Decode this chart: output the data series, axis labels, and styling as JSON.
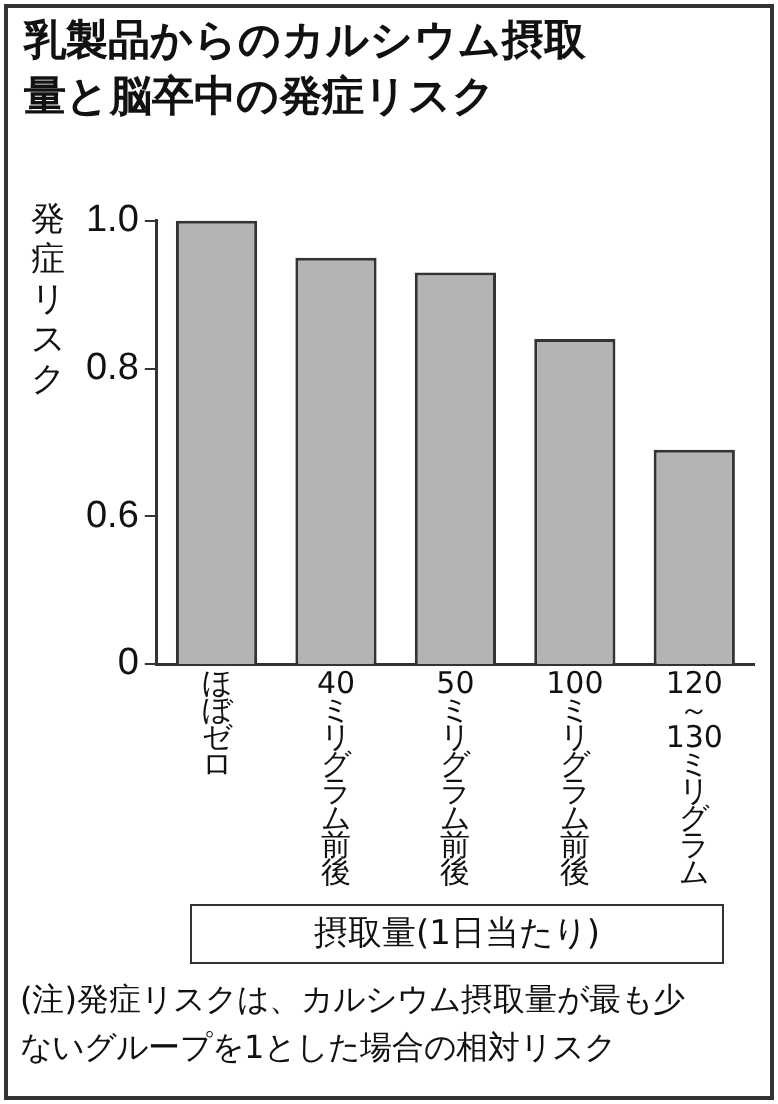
{
  "chart_data": {
    "type": "bar",
    "title": "乳製品からのカルシウム摂取量と脳卒中の発症リスク",
    "ylabel": "発症リスク",
    "xlabel": "摂取量(1日当たり)",
    "annotations": [
      "(注)発症リスクは、カルシウム摂取量が最も少ないグループを1とした場合の相対リスク"
    ],
    "categories": [
      "ほぼゼロ",
      "40ミリグラム前後",
      "50ミリグラム前後",
      "100ミリグラム前後",
      "120～130ミリグラム"
    ],
    "values": [
      1.0,
      0.95,
      0.93,
      0.84,
      0.69
    ],
    "color": "#b4b4b4",
    "ylim": [
      0.4,
      1.0
    ],
    "yticks": [
      {
        "value": 0.4,
        "label": "0"
      },
      {
        "value": 0.6,
        "label": "0.6"
      },
      {
        "value": 0.8,
        "label": "0.8"
      },
      {
        "value": 1.0,
        "label": "1.0"
      }
    ],
    "grid": false
  }
}
